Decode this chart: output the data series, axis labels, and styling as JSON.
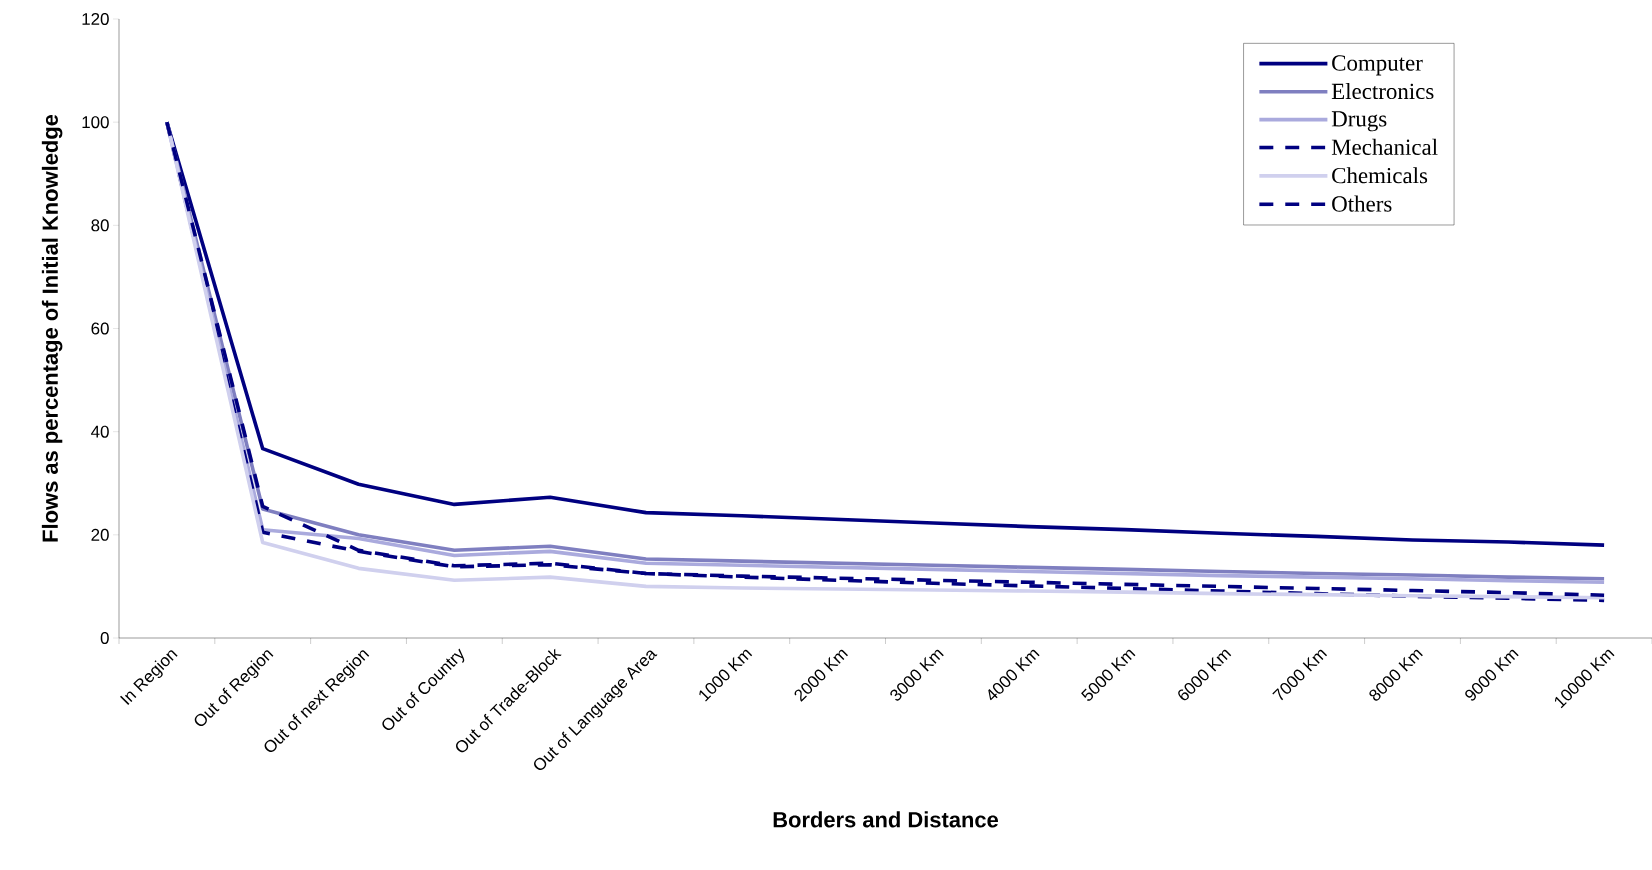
{
  "chart_data": {
    "type": "line",
    "xlabel": "Borders and Distance",
    "ylabel": "Flows as percentage of Initial Knowledge",
    "categories": [
      "In Region",
      "Out of Region",
      "Out of next Region",
      "Out of Country",
      "Out of Trade-Block",
      "Out of Language Area",
      "1000 Km",
      "2000 Km",
      "3000 Km",
      "4000 Km",
      "5000 Km",
      "6000 Km",
      "7000 Km",
      "8000 Km",
      "9000 Km",
      "10000 Km"
    ],
    "ylim": [
      0,
      120
    ],
    "yticks": [
      0,
      20,
      40,
      60,
      80,
      100,
      120
    ],
    "grid": false,
    "legend": "top right",
    "marker": "none",
    "series": [
      {
        "name": "Computer",
        "color": "#000080",
        "line_style": "solid",
        "values": [
          100,
          36.7,
          29.8,
          25.9,
          27.3,
          24.3,
          23.7,
          23.0,
          22.3,
          21.6,
          21.0,
          20.3,
          19.7,
          19.0,
          18.6,
          18.0
        ]
      },
      {
        "name": "Electronics",
        "color": "#7f7fc0",
        "line_style": "solid",
        "values": [
          100,
          25,
          20,
          17,
          17.8,
          15.3,
          14.9,
          14.5,
          14.1,
          13.7,
          13.3,
          12.9,
          12.5,
          12.2,
          11.8,
          11.5
        ]
      },
      {
        "name": "Drugs",
        "color": "#aaaadd",
        "line_style": "solid",
        "values": [
          100,
          21,
          19.3,
          16,
          16.8,
          14.5,
          14.1,
          13.7,
          13.3,
          12.9,
          12.5,
          12.1,
          11.8,
          11.5,
          11.1,
          10.8
        ]
      },
      {
        "name": "Mechanical",
        "color": "#000080",
        "line_style": "dashed",
        "values": [
          100,
          20.5,
          16.8,
          13.8,
          14.2,
          12.5,
          11.8,
          11.2,
          10.6,
          10.1,
          9.6,
          9.1,
          8.6,
          8.1,
          7.7,
          7.3
        ]
      },
      {
        "name": "Chemicals",
        "color": "#d0d0ee",
        "line_style": "solid",
        "values": [
          100,
          18.5,
          13.5,
          11.2,
          11.8,
          10,
          9.7,
          9.5,
          9.3,
          9.1,
          8.9,
          8.6,
          8.4,
          8.2,
          8.0,
          7.8
        ]
      },
      {
        "name": "Others",
        "color": "#000080",
        "line_style": "dashed",
        "values": [
          100,
          25.5,
          17,
          14,
          14.5,
          12.5,
          12.0,
          11.6,
          11.2,
          10.8,
          10.4,
          10.0,
          9.6,
          9.2,
          8.8,
          8.3
        ]
      }
    ]
  }
}
